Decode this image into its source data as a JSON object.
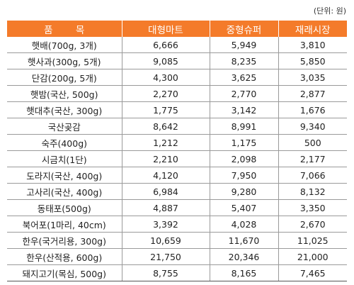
{
  "unit_note": "(단위: 원)",
  "headers": [
    "품 목",
    "대형마트",
    "중형슈퍼",
    "재래시장"
  ],
  "rows": [
    [
      "햇배(700g, 3개)",
      "6,666",
      "5,949",
      "3,810"
    ],
    [
      "햇사과(300g, 5개)",
      "9,085",
      "8,235",
      "5,850"
    ],
    [
      "단감(200g, 5개)",
      "4,300",
      "3,625",
      "3,035"
    ],
    [
      "햇밤(국산, 500g)",
      "2,270",
      "2,770",
      "2,877"
    ],
    [
      "햇대추(국산, 300g)",
      "1,775",
      "3,142",
      "1,676"
    ],
    [
      "국산곶감",
      "8,642",
      "8,991",
      "9,340"
    ],
    [
      "숙주(400g)",
      "1,212",
      "1,175",
      "500"
    ],
    [
      "시금치(1단)",
      "2,210",
      "2,098",
      "2,177"
    ],
    [
      "도라지(국산, 400g)",
      "4,120",
      "7,950",
      "7,066"
    ],
    [
      "고사리(국산, 400g)",
      "6,984",
      "9,280",
      "8,132"
    ],
    [
      "동태포(500g)",
      "4,887",
      "5,407",
      "3,350"
    ],
    [
      "북어포(1마리, 40cm)",
      "3,392",
      "4,028",
      "2,670"
    ],
    [
      "한우(국거리용, 300g)",
      "10,659",
      "11,670",
      "11,025"
    ],
    [
      "한우(산적용, 600g)",
      "21,750",
      "20,346",
      "21,000"
    ],
    [
      "돼지고기(목심, 500g)",
      "8,755",
      "8,165",
      "7,465"
    ]
  ]
}
